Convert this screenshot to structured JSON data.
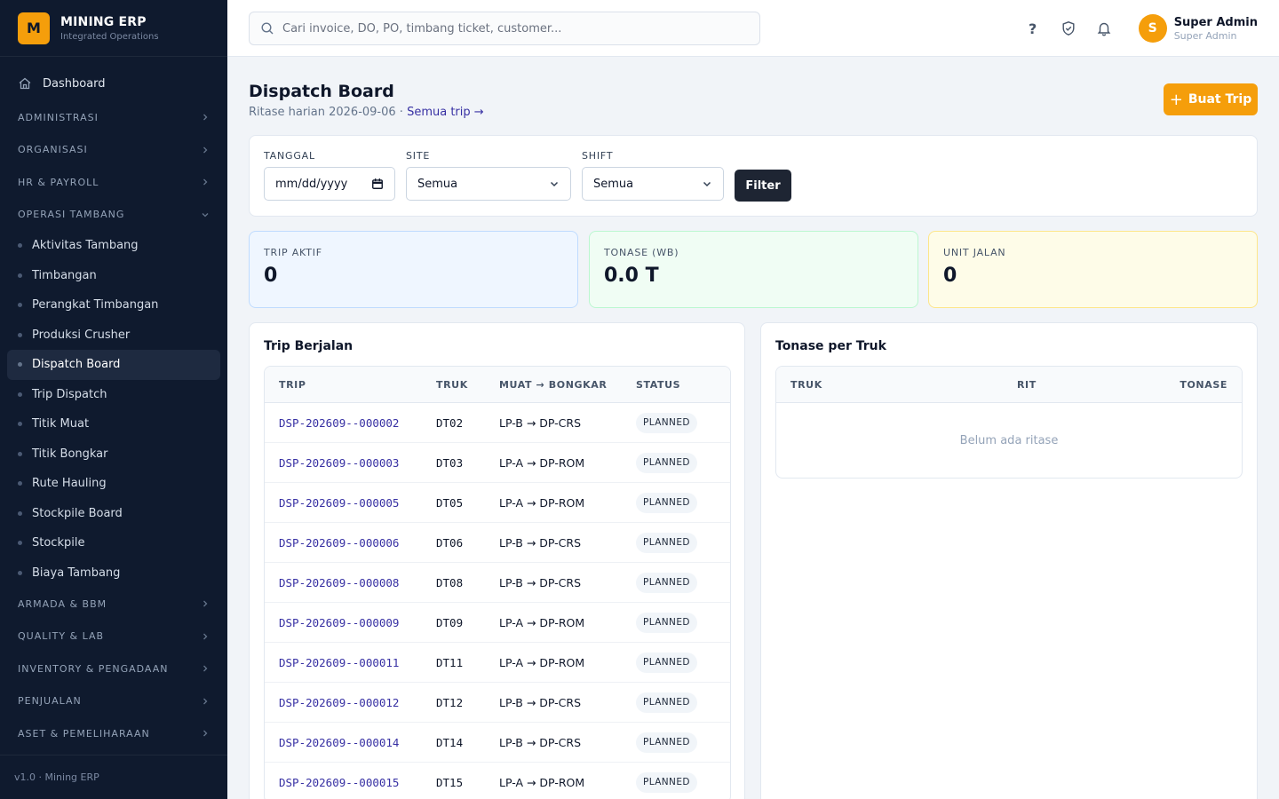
{
  "brand": {
    "logo": "M",
    "name": "MINING ERP",
    "sub": "Integrated Operations"
  },
  "sidebar": {
    "dashboard": "Dashboard",
    "groups_top": [
      {
        "label": "ADMINISTRASI"
      },
      {
        "label": "ORGANISASI"
      },
      {
        "label": "HR & PAYROLL"
      }
    ],
    "open_group": "OPERASI TAMBANG",
    "sub_items": [
      "Aktivitas Tambang",
      "Timbangan",
      "Perangkat Timbangan",
      "Produksi Crusher",
      "Dispatch Board",
      "Trip Dispatch",
      "Titik Muat",
      "Titik Bongkar",
      "Rute Hauling",
      "Stockpile Board",
      "Stockpile",
      "Biaya Tambang"
    ],
    "active_index": 4,
    "groups_bottom": [
      {
        "label": "ARMADA & BBM"
      },
      {
        "label": "QUALITY & LAB"
      },
      {
        "label": "INVENTORY & PENGADAAN"
      },
      {
        "label": "PENJUALAN"
      },
      {
        "label": "ASET & PEMELIHARAAN"
      }
    ],
    "footer": "v1.0 · Mining ERP"
  },
  "topbar": {
    "search_placeholder": "Cari invoice, DO, PO, timbang ticket, customer...",
    "help": "?",
    "user_initial": "S",
    "user_name": "Super Admin",
    "user_role": "Super Admin"
  },
  "page": {
    "title": "Dispatch Board",
    "subtitle": "Ritase harian 2026-09-06 · ",
    "link": "Semua trip →",
    "create_button": "Buat Trip",
    "create_plus": "+"
  },
  "filter": {
    "date_label": "TANGGAL",
    "date_value": "mm/dd/yyyy",
    "site_label": "SITE",
    "site_value": "Semua",
    "shift_label": "SHIFT",
    "shift_value": "Semua",
    "button": "Filter"
  },
  "kpis": [
    {
      "label": "TRIP AKTIF",
      "value": "0"
    },
    {
      "label": "TONASE (WB)",
      "value": "0.0 T"
    },
    {
      "label": "UNIT JALAN",
      "value": "0"
    }
  ],
  "trips": {
    "title": "Trip Berjalan",
    "headers": [
      "TRIP",
      "TRUK",
      "MUAT → BONGKAR",
      "STATUS"
    ],
    "rows": [
      {
        "trip": "DSP-202609--000002",
        "truck": "DT02",
        "route": "LP-B → DP-CRS",
        "status": "PLANNED"
      },
      {
        "trip": "DSP-202609--000003",
        "truck": "DT03",
        "route": "LP-A → DP-ROM",
        "status": "PLANNED"
      },
      {
        "trip": "DSP-202609--000005",
        "truck": "DT05",
        "route": "LP-A → DP-ROM",
        "status": "PLANNED"
      },
      {
        "trip": "DSP-202609--000006",
        "truck": "DT06",
        "route": "LP-B → DP-CRS",
        "status": "PLANNED"
      },
      {
        "trip": "DSP-202609--000008",
        "truck": "DT08",
        "route": "LP-B → DP-CRS",
        "status": "PLANNED"
      },
      {
        "trip": "DSP-202609--000009",
        "truck": "DT09",
        "route": "LP-A → DP-ROM",
        "status": "PLANNED"
      },
      {
        "trip": "DSP-202609--000011",
        "truck": "DT11",
        "route": "LP-A → DP-ROM",
        "status": "PLANNED"
      },
      {
        "trip": "DSP-202609--000012",
        "truck": "DT12",
        "route": "LP-B → DP-CRS",
        "status": "PLANNED"
      },
      {
        "trip": "DSP-202609--000014",
        "truck": "DT14",
        "route": "LP-B → DP-CRS",
        "status": "PLANNED"
      },
      {
        "trip": "DSP-202609--000015",
        "truck": "DT15",
        "route": "LP-A → DP-ROM",
        "status": "PLANNED"
      }
    ]
  },
  "tonnage": {
    "title": "Tonase per Truk",
    "headers": [
      "TRUK",
      "RIT",
      "TONASE"
    ],
    "empty": "Belum ada ritase"
  },
  "colors": {
    "accent": "#f59e0b",
    "sidebar": "#0f1a2e",
    "link": "#3730a3"
  },
  "icons": {
    "dashboard": "home-icon",
    "search": "search-icon",
    "help": "help-icon",
    "shield": "shield-check-icon",
    "bell": "bell-icon"
  }
}
